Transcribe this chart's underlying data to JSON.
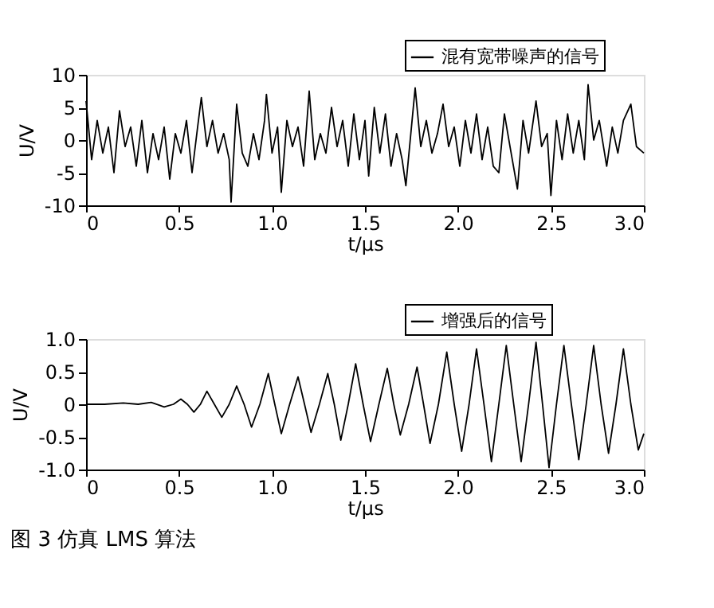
{
  "chart_data": [
    {
      "type": "line",
      "xlabel": "t/μs",
      "ylabel": "U/V",
      "legend": "top right",
      "grid": false,
      "marker": "none",
      "line_style": "solid",
      "xlim": [
        0,
        3.0
      ],
      "ylim": [
        -10,
        10
      ],
      "xticks": [
        0,
        0.5,
        {
          "value": 1,
          "label": "1.0"
        },
        1.5,
        {
          "value": 2,
          "label": "2.0"
        },
        2.5,
        {
          "value": 3,
          "label": "3.0"
        }
      ],
      "yticks": [
        -10,
        -5,
        0,
        5,
        10
      ],
      "x": [
        0.0,
        0.03,
        0.06,
        0.09,
        0.12,
        0.15,
        0.18,
        0.21,
        0.24,
        0.27,
        0.3,
        0.33,
        0.36,
        0.39,
        0.42,
        0.45,
        0.48,
        0.51,
        0.54,
        0.57,
        0.6,
        0.62,
        0.65,
        0.68,
        0.71,
        0.74,
        0.77,
        0.78,
        0.81,
        0.84,
        0.87,
        0.9,
        0.93,
        0.96,
        0.97,
        1.0,
        1.03,
        1.05,
        1.08,
        1.11,
        1.14,
        1.17,
        1.2,
        1.23,
        1.26,
        1.29,
        1.32,
        1.35,
        1.38,
        1.41,
        1.44,
        1.47,
        1.5,
        1.52,
        1.55,
        1.58,
        1.61,
        1.64,
        1.67,
        1.7,
        1.72,
        1.75,
        1.77,
        1.8,
        1.83,
        1.86,
        1.89,
        1.92,
        1.95,
        1.98,
        2.01,
        2.04,
        2.07,
        2.1,
        2.13,
        2.16,
        2.19,
        2.22,
        2.25,
        2.28,
        2.32,
        2.35,
        2.38,
        2.42,
        2.45,
        2.48,
        2.5,
        2.53,
        2.56,
        2.59,
        2.62,
        2.65,
        2.68,
        2.7,
        2.73,
        2.76,
        2.8,
        2.83,
        2.86,
        2.89,
        2.93,
        2.96,
        3.0
      ],
      "series": [
        {
          "name": "混有宽带噪声的信号",
          "color": "#000000",
          "values": [
            6,
            -3,
            3,
            -2,
            2,
            -5,
            4.5,
            -1,
            2,
            -4,
            3,
            -5,
            1,
            -3,
            2,
            -6,
            1,
            -2,
            3,
            -5,
            2,
            6.5,
            -1,
            3,
            -2,
            1,
            -3,
            -9.5,
            5.5,
            -2,
            -4,
            1,
            -3,
            3,
            7,
            -2,
            2,
            -8,
            3,
            -1,
            2,
            -4,
            7.5,
            -3,
            1,
            -2,
            5,
            -1,
            3,
            -4,
            4,
            -3,
            3,
            -5.5,
            5,
            -2,
            4,
            -4,
            1,
            -3,
            -7,
            2,
            8,
            -1,
            3,
            -2,
            1,
            5.5,
            -1,
            2,
            -4,
            3,
            -2,
            4,
            -3,
            2,
            -4,
            -5,
            4,
            -1,
            -7.5,
            3,
            -2,
            6,
            -1,
            1,
            -8.5,
            3,
            -3,
            4,
            -2,
            3,
            -3,
            8.5,
            0,
            3,
            -4,
            2,
            -2,
            3,
            5.5,
            -1,
            -2
          ]
        }
      ]
    },
    {
      "type": "line",
      "xlabel": "t/μs",
      "ylabel": "U/V",
      "legend": "top right",
      "grid": false,
      "marker": "none",
      "line_style": "solid",
      "xlim": [
        0,
        3.0
      ],
      "ylim": [
        -1.0,
        1.0
      ],
      "xticks": [
        0,
        0.5,
        {
          "value": 1,
          "label": "1.0"
        },
        1.5,
        {
          "value": 2,
          "label": "2.0"
        },
        2.5,
        {
          "value": 3,
          "label": "3.0"
        }
      ],
      "yticks": [
        {
          "value": -1,
          "label": "-1.0"
        },
        -0.5,
        0,
        0.5,
        {
          "value": 1,
          "label": "1.0"
        }
      ],
      "x": [
        0,
        0.1,
        0.2,
        0.28,
        0.35,
        0.42,
        0.47,
        0.51,
        0.545,
        0.58,
        0.615,
        0.65,
        0.69,
        0.73,
        0.77,
        0.81,
        0.85,
        0.89,
        0.935,
        0.98,
        1.015,
        1.05,
        1.095,
        1.14,
        1.175,
        1.21,
        1.255,
        1.3,
        1.335,
        1.37,
        1.41,
        1.45,
        1.49,
        1.53,
        1.575,
        1.62,
        1.655,
        1.69,
        1.735,
        1.78,
        1.815,
        1.85,
        1.895,
        1.94,
        1.98,
        2.02,
        2.06,
        2.1,
        2.14,
        2.18,
        2.22,
        2.26,
        2.3,
        2.34,
        2.38,
        2.42,
        2.455,
        2.49,
        2.53,
        2.57,
        2.61,
        2.65,
        2.69,
        2.73,
        2.77,
        2.81,
        2.85,
        2.89,
        2.93,
        2.97,
        3.0
      ],
      "annotations": [
        "图 3 仿真 LMS 算法"
      ],
      "series": [
        {
          "name": "增强后的信号",
          "color": "#000000",
          "values": [
            0,
            0,
            0.02,
            0,
            0.03,
            -0.04,
            0,
            0.08,
            0,
            -0.12,
            0,
            0.2,
            0,
            -0.2,
            0,
            0.28,
            0,
            -0.35,
            0,
            0.47,
            0,
            -0.45,
            0,
            0.42,
            0,
            -0.43,
            0,
            0.47,
            0,
            -0.55,
            0,
            0.62,
            0,
            -0.57,
            0,
            0.55,
            0,
            -0.47,
            0,
            0.57,
            0,
            -0.6,
            0,
            0.8,
            0,
            -0.72,
            0,
            0.85,
            0,
            -0.88,
            0,
            0.9,
            0,
            -0.88,
            0,
            0.95,
            0,
            -0.97,
            0,
            0.9,
            0,
            -0.85,
            0,
            0.9,
            0,
            -0.75,
            0,
            0.85,
            0,
            -0.7,
            -0.45
          ]
        }
      ]
    }
  ]
}
